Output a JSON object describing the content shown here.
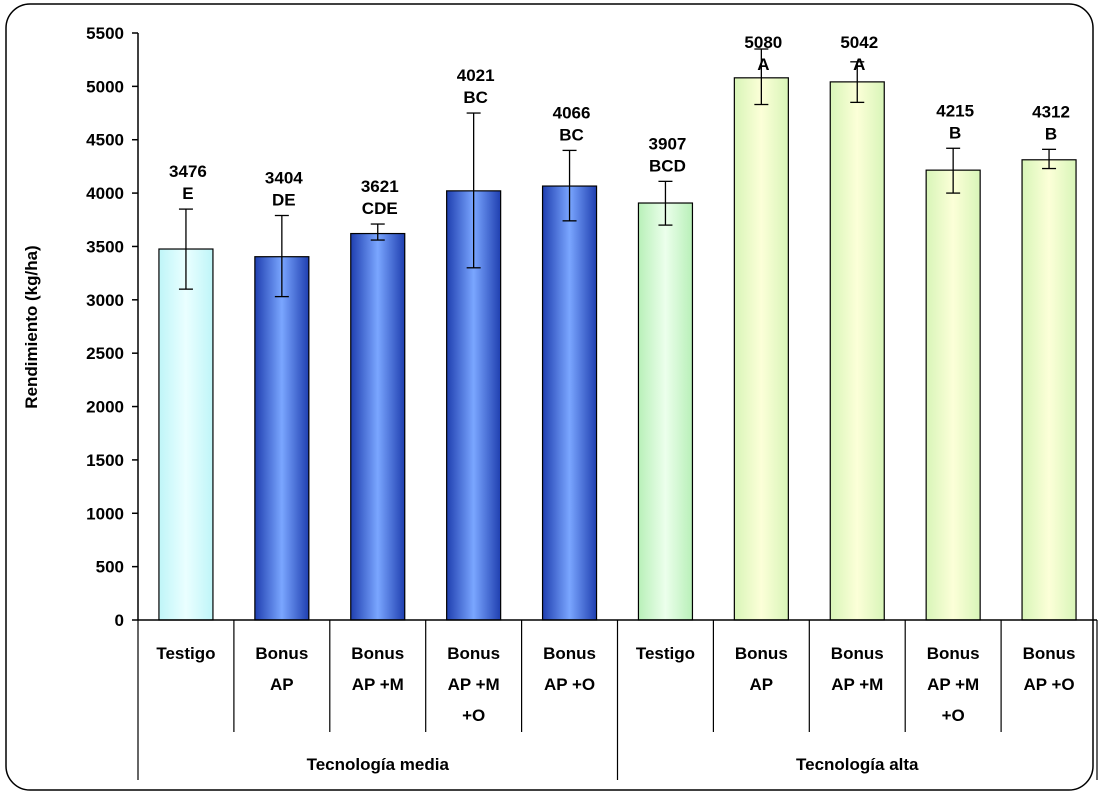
{
  "chart_data": {
    "type": "bar",
    "title": "",
    "xlabel": "",
    "ylabel": "Rendimiento (kg/ha)",
    "ylim": [
      0,
      5500
    ],
    "yticks": [
      0,
      500,
      1000,
      1500,
      2000,
      2500,
      3000,
      3500,
      4000,
      4500,
      5000,
      5500
    ],
    "grid": false,
    "groups": [
      {
        "label": "Tecnología media",
        "start": 0,
        "end": 4
      },
      {
        "label": "Tecnología alta",
        "start": 5,
        "end": 9
      }
    ],
    "categories": [
      [
        "Testigo"
      ],
      [
        "Bonus",
        "AP"
      ],
      [
        "Bonus",
        "AP +M"
      ],
      [
        "Bonus",
        "AP +M",
        "+O"
      ],
      [
        "Bonus",
        "AP +O"
      ],
      [
        "Testigo"
      ],
      [
        "Bonus",
        "AP"
      ],
      [
        "Bonus",
        "AP +M"
      ],
      [
        "Bonus",
        "AP +M",
        "+O"
      ],
      [
        "Bonus",
        "AP +O"
      ]
    ],
    "values": [
      3476,
      3404,
      3621,
      4021,
      4066,
      3907,
      5080,
      5042,
      4215,
      4312
    ],
    "error_low": [
      3100,
      3030,
      3560,
      3300,
      3740,
      3700,
      4830,
      4850,
      4000,
      4230
    ],
    "error_high": [
      3850,
      3790,
      3710,
      4750,
      4400,
      4110,
      5350,
      5230,
      4420,
      4410
    ],
    "value_labels": [
      "3476",
      "3404",
      "3621",
      "4021",
      "4066",
      "3907",
      "5080",
      "5042",
      "4215",
      "4312"
    ],
    "letter_labels": [
      "E",
      "DE",
      "CDE",
      "BC",
      "BC",
      "BCD",
      "A",
      "A",
      "B",
      "B"
    ],
    "bar_styles": [
      "cyan-light",
      "blue",
      "blue",
      "blue",
      "blue",
      "green-light",
      "yellow-green",
      "yellow-green",
      "yellow-green",
      "yellow-green"
    ],
    "colors": {
      "cyan-light": "#ccffff",
      "blue": "#4f81f0",
      "green-light": "#ccffcc",
      "yellow-green": "#f2ffcc"
    }
  }
}
